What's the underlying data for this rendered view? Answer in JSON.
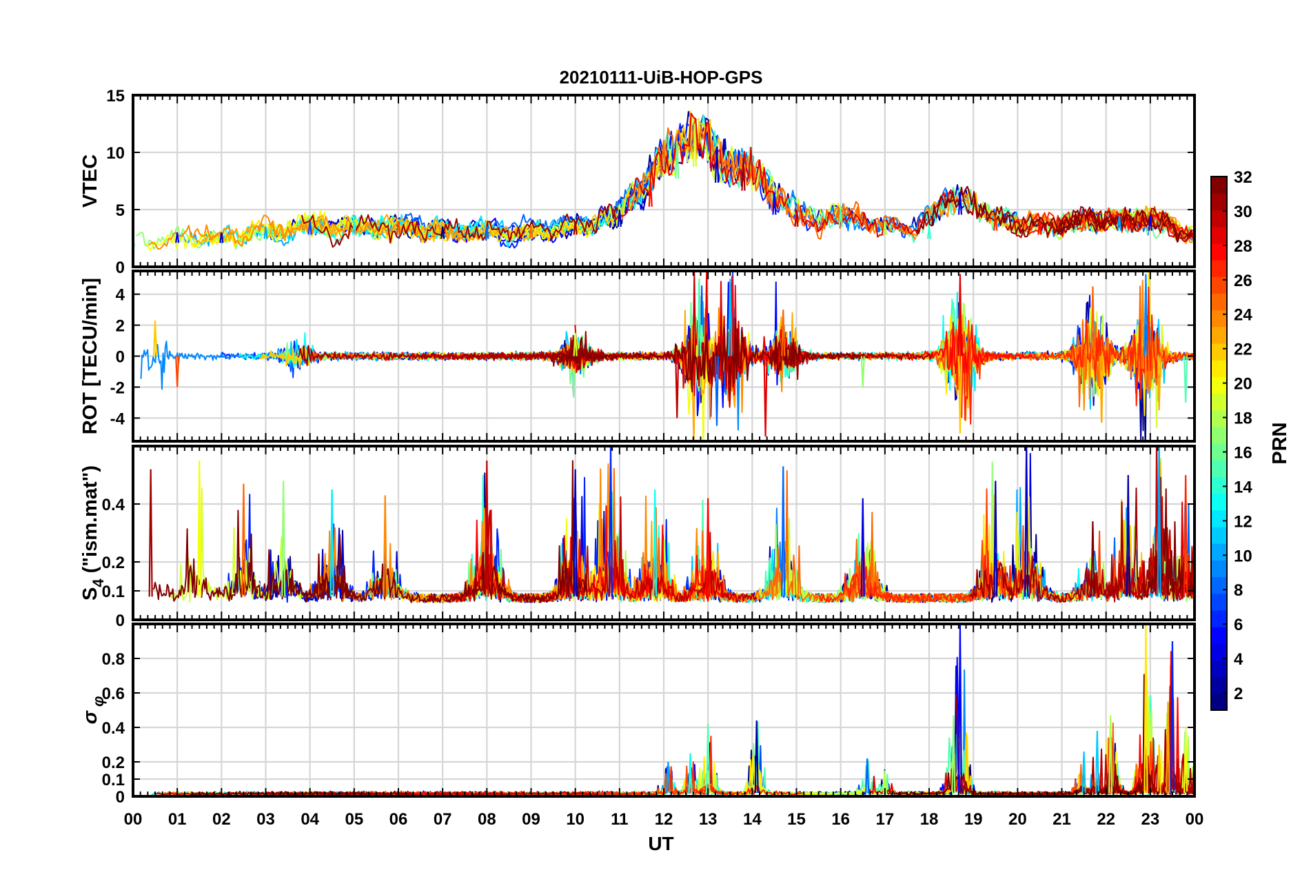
{
  "title": "20210111-UiB-HOP-GPS",
  "chart_data": [
    {
      "type": "line",
      "panel": "vtec",
      "ylabel": "VTEC",
      "ylim": [
        0,
        15
      ],
      "yticks": [
        0,
        5,
        10,
        15
      ],
      "ytick_labels": [
        "0",
        "5",
        "10",
        "15"
      ],
      "grid": true,
      "series_note": "one trace per GPS PRN satellite, colored by PRN",
      "events": [
        {
          "x_h": 0.0,
          "y": 2.5
        },
        {
          "x_h": 1.0,
          "y": 3.0
        },
        {
          "x_h": 2.0,
          "y": 3.0
        },
        {
          "x_h": 3.0,
          "y": 3.5
        },
        {
          "x_h": 4.0,
          "y": 4.0
        },
        {
          "x_h": 5.0,
          "y": 4.0
        },
        {
          "x_h": 6.0,
          "y": 4.0
        },
        {
          "x_h": 7.0,
          "y": 3.5
        },
        {
          "x_h": 8.0,
          "y": 3.5
        },
        {
          "x_h": 9.0,
          "y": 3.5
        },
        {
          "x_h": 10.0,
          "y": 4.0
        },
        {
          "x_h": 11.0,
          "y": 5.0
        },
        {
          "x_h": 11.7,
          "y": 7.5
        },
        {
          "x_h": 12.3,
          "y": 11.0
        },
        {
          "x_h": 12.7,
          "y": 12.5
        },
        {
          "x_h": 13.2,
          "y": 10.5
        },
        {
          "x_h": 13.8,
          "y": 9.5
        },
        {
          "x_h": 14.5,
          "y": 6.5
        },
        {
          "x_h": 15.0,
          "y": 5.0
        },
        {
          "x_h": 16.0,
          "y": 5.0
        },
        {
          "x_h": 17.0,
          "y": 4.0
        },
        {
          "x_h": 18.0,
          "y": 3.5
        },
        {
          "x_h": 18.7,
          "y": 6.5
        },
        {
          "x_h": 19.5,
          "y": 4.5
        },
        {
          "x_h": 20.5,
          "y": 4.0
        },
        {
          "x_h": 21.5,
          "y": 4.5
        },
        {
          "x_h": 22.3,
          "y": 4.5
        },
        {
          "x_h": 23.0,
          "y": 4.5
        },
        {
          "x_h": 24.0,
          "y": 3.0
        }
      ]
    },
    {
      "type": "line",
      "panel": "rot",
      "ylabel": "ROT [TECU/min]",
      "ylim": [
        -5.5,
        5.5
      ],
      "yticks": [
        -4,
        -2,
        0,
        2,
        4
      ],
      "ytick_labels": [
        "-4",
        "-2",
        "0",
        "2",
        "4"
      ],
      "grid": true,
      "events": [
        {
          "x_h": 0.5,
          "y": 2.3
        },
        {
          "x_h": 1.0,
          "y": -2.0
        },
        {
          "x_h": 3.7,
          "y": 1.1
        },
        {
          "x_h": 10.0,
          "y": 1.5
        },
        {
          "x_h": 12.3,
          "y": -4.0
        },
        {
          "x_h": 12.8,
          "y": 5.0
        },
        {
          "x_h": 13.2,
          "y": -4.5
        },
        {
          "x_h": 13.5,
          "y": 5.0
        },
        {
          "x_h": 14.3,
          "y": -5.2
        },
        {
          "x_h": 14.7,
          "y": 3.0
        },
        {
          "x_h": 16.5,
          "y": -2.0
        },
        {
          "x_h": 18.7,
          "y": 5.3
        },
        {
          "x_h": 18.7,
          "y": -5.0
        },
        {
          "x_h": 21.7,
          "y": 4.5
        },
        {
          "x_h": 21.9,
          "y": -4.3
        },
        {
          "x_h": 22.9,
          "y": 5.3
        },
        {
          "x_h": 23.2,
          "y": -3.5
        },
        {
          "x_h": 23.8,
          "y": -3.0
        }
      ]
    },
    {
      "type": "line",
      "panel": "s4",
      "ylabel": "S4 (\"ism.mat\")",
      "ylim": [
        0,
        0.6
      ],
      "yticks": [
        0,
        0.1,
        0.2,
        0.4
      ],
      "ytick_labels": [
        "0",
        "0.1",
        "0.2",
        "0.4"
      ],
      "grid": true,
      "events": [
        {
          "x_h": 0.4,
          "y": 0.52
        },
        {
          "x_h": 1.5,
          "y": 0.55
        },
        {
          "x_h": 2.5,
          "y": 0.47
        },
        {
          "x_h": 3.4,
          "y": 0.48
        },
        {
          "x_h": 4.5,
          "y": 0.45
        },
        {
          "x_h": 5.7,
          "y": 0.43
        },
        {
          "x_h": 8.0,
          "y": 0.55
        },
        {
          "x_h": 10.0,
          "y": 0.52
        },
        {
          "x_h": 10.8,
          "y": 0.6
        },
        {
          "x_h": 11.8,
          "y": 0.45
        },
        {
          "x_h": 13.0,
          "y": 0.42
        },
        {
          "x_h": 14.7,
          "y": 0.53
        },
        {
          "x_h": 16.5,
          "y": 0.42
        },
        {
          "x_h": 19.5,
          "y": 0.48
        },
        {
          "x_h": 20.2,
          "y": 0.6
        },
        {
          "x_h": 21.7,
          "y": 0.34
        },
        {
          "x_h": 22.5,
          "y": 0.5
        },
        {
          "x_h": 23.2,
          "y": 0.6
        },
        {
          "x_h": 23.8,
          "y": 0.5
        }
      ]
    },
    {
      "type": "line",
      "panel": "sigma_phi",
      "ylabel": "σ φ",
      "ylim": [
        0,
        1.0
      ],
      "yticks": [
        0,
        0.1,
        0.2,
        0.4,
        0.6,
        0.8
      ],
      "ytick_labels": [
        "0",
        "0.1",
        "0.2",
        "0.4",
        "0.6",
        "0.8"
      ],
      "grid": true,
      "events": [
        {
          "x_h": 12.1,
          "y": 0.2
        },
        {
          "x_h": 12.6,
          "y": 0.25
        },
        {
          "x_h": 13.0,
          "y": 0.42
        },
        {
          "x_h": 14.1,
          "y": 0.44
        },
        {
          "x_h": 16.6,
          "y": 0.22
        },
        {
          "x_h": 17.0,
          "y": 0.15
        },
        {
          "x_h": 18.55,
          "y": 0.47
        },
        {
          "x_h": 18.7,
          "y": 1.0
        },
        {
          "x_h": 21.5,
          "y": 0.26
        },
        {
          "x_h": 21.8,
          "y": 0.38
        },
        {
          "x_h": 22.1,
          "y": 0.47
        },
        {
          "x_h": 22.9,
          "y": 1.0
        },
        {
          "x_h": 23.2,
          "y": 0.3
        },
        {
          "x_h": 23.4,
          "y": 0.55
        },
        {
          "x_h": 23.5,
          "y": 0.9
        },
        {
          "x_h": 23.8,
          "y": 0.4
        }
      ]
    }
  ],
  "x_axis": {
    "label": "UT",
    "range_hours": [
      0,
      24
    ],
    "tick_labels": [
      "00",
      "01",
      "02",
      "03",
      "04",
      "05",
      "06",
      "07",
      "08",
      "09",
      "10",
      "11",
      "12",
      "13",
      "14",
      "15",
      "16",
      "17",
      "18",
      "19",
      "20",
      "21",
      "22",
      "23",
      "00"
    ]
  },
  "colorbar": {
    "label": "PRN",
    "range": [
      1,
      32
    ],
    "ticks": [
      2,
      4,
      6,
      8,
      10,
      12,
      14,
      16,
      18,
      20,
      22,
      24,
      26,
      28,
      30,
      32
    ],
    "tick_labels": [
      "2",
      "4",
      "6",
      "8",
      "10",
      "12",
      "14",
      "16",
      "18",
      "20",
      "22",
      "24",
      "26",
      "28",
      "30",
      "32"
    ],
    "colormap": "jet"
  }
}
